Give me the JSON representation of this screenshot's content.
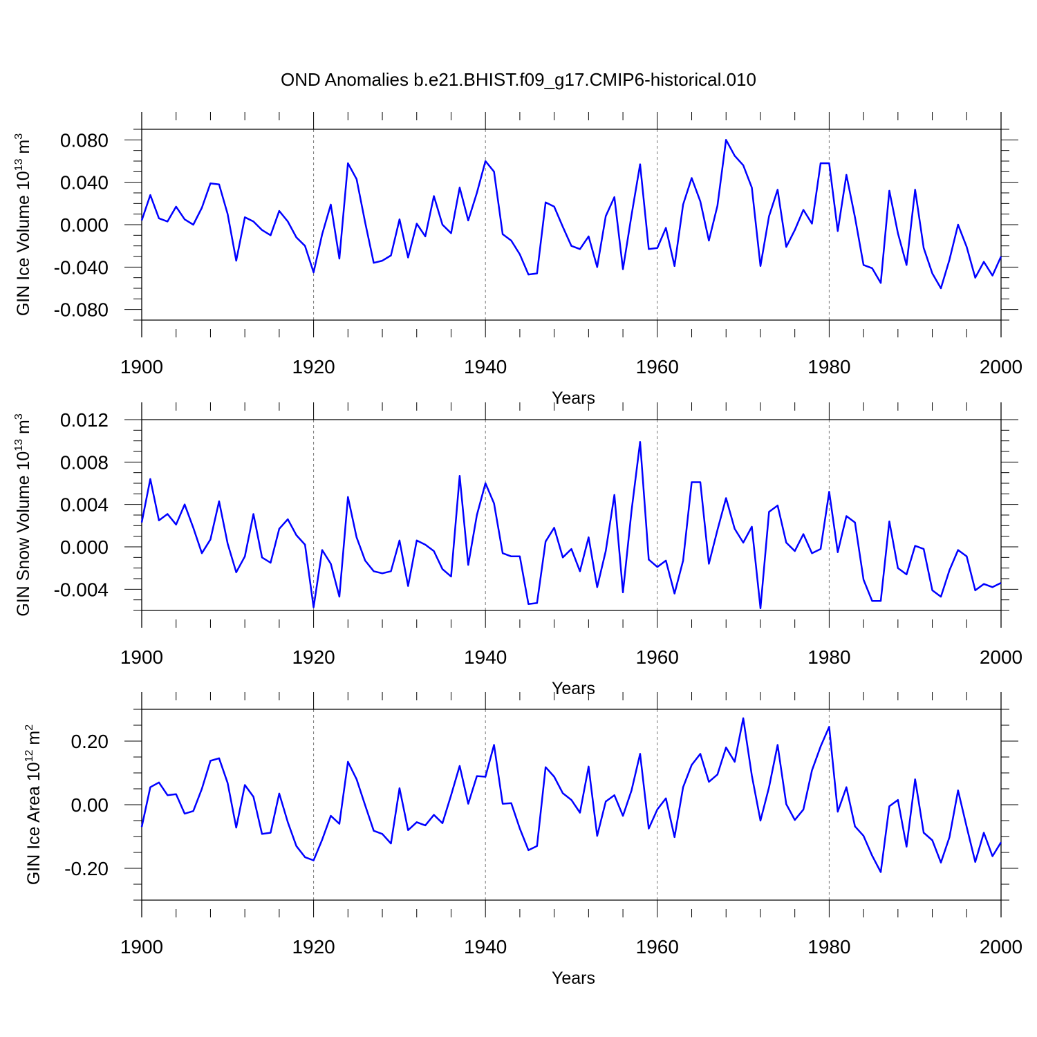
{
  "title": "OND Anomalies b.e21.BHIST.f09_g17.CMIP6-historical.010",
  "line_color": "#0000ff",
  "chart_data": [
    {
      "type": "line",
      "id": "ice-volume",
      "ylabel_main": "GIN Ice Volume 10",
      "ylabel_sup1": "13",
      "ylabel_mid": " m",
      "ylabel_sup2": "3",
      "xlabel": "Years",
      "xlim": [
        1900,
        2000
      ],
      "ylim": [
        -0.09,
        0.09
      ],
      "yticks": [
        -0.08,
        -0.04,
        0.0,
        0.04,
        0.08
      ],
      "ytick_labels": [
        "-0.080",
        "-0.040",
        "0.000",
        "0.040",
        "0.080"
      ],
      "xticks": [
        1900,
        1920,
        1940,
        1960,
        1980,
        2000
      ],
      "xtick_labels": [
        "1900",
        "1920",
        "1940",
        "1960",
        "1980",
        "2000"
      ],
      "grid_x": [
        1920,
        1940,
        1960,
        1980
      ],
      "series": [
        {
          "name": "GIN Ice Volume",
          "values": [
            0.004,
            0.028,
            0.006,
            0.003,
            0.017,
            0.005,
            0.0,
            0.016,
            0.039,
            0.038,
            0.01,
            -0.034,
            0.007,
            0.003,
            -0.005,
            -0.01,
            0.013,
            0.003,
            -0.012,
            -0.02,
            -0.045,
            -0.009,
            0.019,
            -0.032,
            0.058,
            0.043,
            0.002,
            -0.036,
            -0.034,
            -0.029,
            0.005,
            -0.031,
            0.001,
            -0.011,
            0.027,
            0.0,
            -0.008,
            0.035,
            0.004,
            0.03,
            0.06,
            0.05,
            -0.009,
            -0.015,
            -0.028,
            -0.047,
            -0.046,
            0.021,
            0.017,
            -0.002,
            -0.02,
            -0.023,
            -0.011,
            -0.04,
            0.008,
            0.026,
            -0.042,
            0.009,
            0.057,
            -0.023,
            -0.022,
            -0.003,
            -0.039,
            0.019,
            0.044,
            0.022,
            -0.015,
            0.018,
            0.08,
            0.065,
            0.056,
            0.035,
            -0.039,
            0.008,
            0.033,
            -0.021,
            -0.005,
            0.014,
            0.001,
            0.058,
            0.058,
            -0.006,
            0.047,
            0.007,
            -0.038,
            -0.041,
            -0.055,
            0.032,
            -0.008,
            -0.038,
            0.033,
            -0.022,
            -0.046,
            -0.06,
            -0.033,
            0.0,
            -0.021,
            -0.05,
            -0.035,
            -0.048,
            -0.03
          ]
        }
      ]
    },
    {
      "type": "line",
      "id": "snow-volume",
      "ylabel_main": "GIN Snow Volume 10",
      "ylabel_sup1": "13",
      "ylabel_mid": " m",
      "ylabel_sup2": "3",
      "xlabel": "Years",
      "xlim": [
        1900,
        2000
      ],
      "ylim": [
        -0.006,
        0.012
      ],
      "yticks": [
        -0.004,
        0.0,
        0.004,
        0.008,
        0.012
      ],
      "ytick_labels": [
        "-0.004",
        "0.000",
        "0.004",
        "0.008",
        "0.012"
      ],
      "xticks": [
        1900,
        1920,
        1940,
        1960,
        1980,
        2000
      ],
      "xtick_labels": [
        "1900",
        "1920",
        "1940",
        "1960",
        "1980",
        "2000"
      ],
      "grid_x": [
        1920,
        1940,
        1960,
        1980
      ],
      "series": [
        {
          "name": "GIN Snow Volume",
          "values": [
            0.0023,
            0.0064,
            0.0025,
            0.0031,
            0.0021,
            0.004,
            0.0018,
            -0.0006,
            0.0007,
            0.0043,
            0.0003,
            -0.0024,
            -0.0009,
            0.0031,
            -0.001,
            -0.0015,
            0.0017,
            0.0026,
            0.0011,
            0.0002,
            -0.0057,
            -0.0003,
            -0.0016,
            -0.0047,
            0.0047,
            0.0009,
            -0.0013,
            -0.0023,
            -0.0025,
            -0.0023,
            0.0006,
            -0.0037,
            0.0006,
            0.0002,
            -0.0004,
            -0.0021,
            -0.0028,
            0.0067,
            -0.0017,
            0.003,
            0.006,
            0.0041,
            -0.0006,
            -0.0009,
            -0.0009,
            -0.0054,
            -0.0053,
            0.0005,
            0.0018,
            -0.001,
            -0.0002,
            -0.0023,
            0.0009,
            -0.0038,
            -0.0004,
            0.0049,
            -0.0043,
            0.0034,
            0.0099,
            -0.0012,
            -0.0019,
            -0.0013,
            -0.0044,
            -0.0013,
            0.0061,
            0.0061,
            -0.0016,
            0.0016,
            0.0046,
            0.0017,
            0.0004,
            0.0019,
            -0.0058,
            0.0033,
            0.0039,
            0.0004,
            -0.0004,
            0.0012,
            -0.0006,
            -0.0002,
            0.0052,
            -0.0005,
            0.0029,
            0.0023,
            -0.0031,
            -0.0051,
            -0.0051,
            0.0024,
            -0.002,
            -0.0026,
            0.0001,
            -0.0002,
            -0.0041,
            -0.0047,
            -0.0022,
            -0.0003,
            -0.0009,
            -0.0041,
            -0.0035,
            -0.0038,
            -0.0034
          ]
        }
      ]
    },
    {
      "type": "line",
      "id": "ice-area",
      "ylabel_main": "GIN Ice Area 10",
      "ylabel_sup1": "12",
      "ylabel_mid": " m",
      "ylabel_sup2": "2",
      "xlabel": "Years",
      "xlim": [
        1900,
        2000
      ],
      "ylim": [
        -0.3,
        0.3
      ],
      "yticks": [
        -0.2,
        0.0,
        0.2
      ],
      "ytick_labels": [
        "-0.20",
        "0.00",
        "0.20"
      ],
      "xticks": [
        1900,
        1920,
        1940,
        1960,
        1980,
        2000
      ],
      "xtick_labels": [
        "1900",
        "1920",
        "1940",
        "1960",
        "1980",
        "2000"
      ],
      "grid_x": [
        1920,
        1940,
        1960,
        1980
      ],
      "series": [
        {
          "name": "GIN Ice Area",
          "values": [
            -0.07,
            0.055,
            0.07,
            0.03,
            0.033,
            -0.028,
            -0.02,
            0.05,
            0.138,
            0.146,
            0.068,
            -0.072,
            0.062,
            0.025,
            -0.092,
            -0.088,
            0.035,
            -0.055,
            -0.13,
            -0.165,
            -0.175,
            -0.11,
            -0.035,
            -0.06,
            0.135,
            0.08,
            -0.002,
            -0.082,
            -0.092,
            -0.122,
            0.052,
            -0.08,
            -0.055,
            -0.065,
            -0.032,
            -0.058,
            0.03,
            0.122,
            0.003,
            0.09,
            0.088,
            0.188,
            0.003,
            0.005,
            -0.075,
            -0.143,
            -0.13,
            0.118,
            0.088,
            0.036,
            0.015,
            -0.025,
            0.12,
            -0.098,
            0.01,
            0.03,
            -0.035,
            0.045,
            0.16,
            -0.075,
            -0.015,
            0.02,
            -0.102,
            0.055,
            0.125,
            0.16,
            0.072,
            0.095,
            0.18,
            0.135,
            0.272,
            0.092,
            -0.05,
            0.055,
            0.188,
            0.002,
            -0.048,
            -0.015,
            0.108,
            0.183,
            0.245,
            -0.022,
            0.055,
            -0.068,
            -0.098,
            -0.16,
            -0.212,
            -0.005,
            0.015,
            -0.132,
            0.08,
            -0.088,
            -0.112,
            -0.182,
            -0.102,
            0.045,
            -0.07,
            -0.18,
            -0.088,
            -0.162,
            -0.118
          ]
        }
      ]
    }
  ]
}
